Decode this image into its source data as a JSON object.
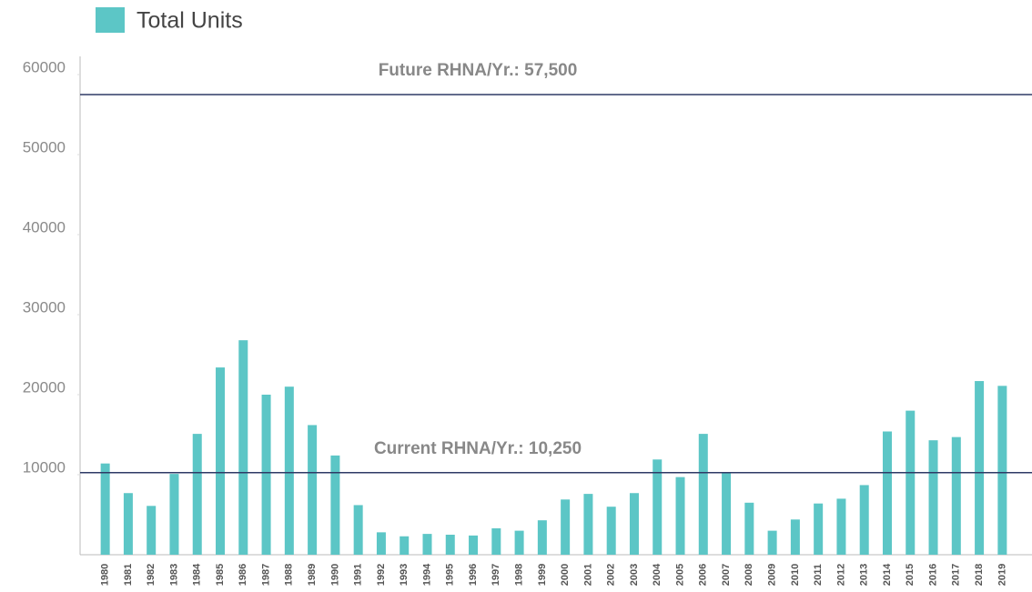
{
  "chart_data": {
    "type": "bar",
    "legend": "Total Units",
    "color": "#5cc6c6",
    "categories": [
      "1980",
      "1981",
      "1982",
      "1983",
      "1984",
      "1985",
      "1986",
      "1987",
      "1988",
      "1989",
      "1990",
      "1991",
      "1992",
      "1993",
      "1994",
      "1995",
      "1996",
      "1997",
      "1998",
      "1999",
      "2000",
      "2001",
      "2002",
      "2003",
      "2004",
      "2005",
      "2006",
      "2007",
      "2008",
      "2009",
      "2010",
      "2011",
      "2012",
      "2013",
      "2014",
      "2015",
      "2016",
      "2017",
      "2018",
      "2019"
    ],
    "values": [
      11400,
      7700,
      6100,
      10100,
      15100,
      23400,
      26800,
      20000,
      21000,
      16200,
      12400,
      6200,
      2800,
      2300,
      2600,
      2500,
      2400,
      3300,
      3000,
      4300,
      6900,
      7600,
      6000,
      7700,
      11900,
      9700,
      15100,
      10200,
      6500,
      3000,
      4400,
      6400,
      7000,
      8700,
      15400,
      18000,
      14300,
      14700,
      21700,
      21100
    ],
    "ylim": [
      0,
      62000
    ],
    "yticks": [
      10000,
      20000,
      30000,
      40000,
      50000,
      60000
    ],
    "reference_lines": [
      {
        "value": 57500,
        "label": "Future RHNA/Yr.: 57,500",
        "color": "#2e3a66"
      },
      {
        "value": 10250,
        "label": "Current RHNA/Yr.: 10,250",
        "color": "#2e3a66"
      }
    ]
  }
}
